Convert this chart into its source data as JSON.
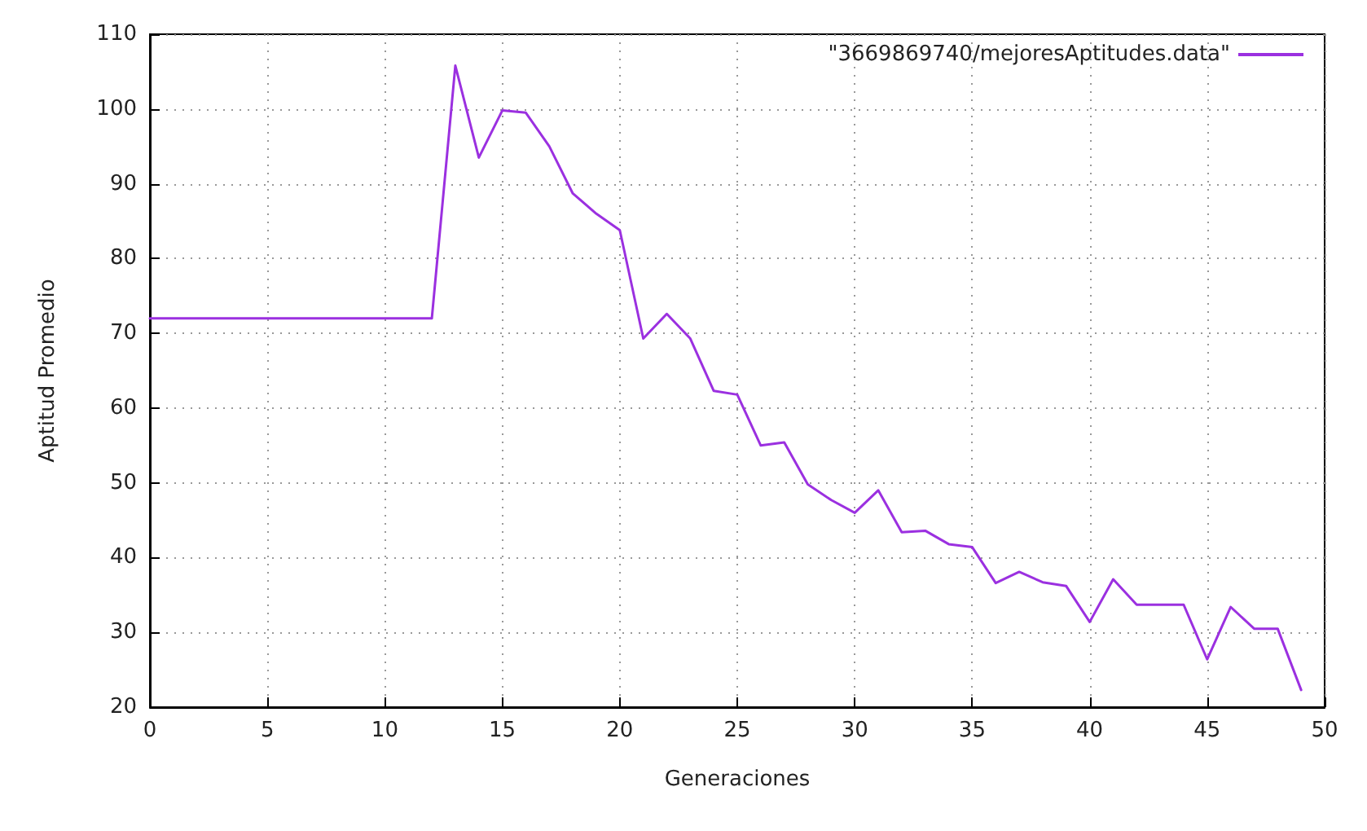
{
  "chart_data": {
    "type": "line",
    "xlabel": "Generaciones",
    "ylabel": "Aptitud Promedio",
    "x": [
      0,
      1,
      2,
      3,
      4,
      5,
      6,
      7,
      8,
      9,
      10,
      11,
      12,
      13,
      14,
      15,
      16,
      17,
      18,
      19,
      20,
      21,
      22,
      23,
      24,
      25,
      26,
      27,
      28,
      29,
      30,
      31,
      32,
      33,
      34,
      35,
      36,
      37,
      38,
      39,
      40,
      41,
      42,
      43,
      44,
      45,
      46,
      47,
      48,
      49
    ],
    "series": [
      {
        "name": "\"3669869740/mejoresAptitudes.data\"",
        "color": "#9b30e0",
        "values": [
          72,
          72,
          72,
          72,
          72,
          72,
          72,
          72,
          72,
          72,
          72,
          72,
          72,
          105.8,
          93.5,
          99.8,
          99.5,
          95,
          88.7,
          86,
          83.8,
          69.3,
          72.6,
          69.3,
          62.3,
          61.8,
          55,
          55.4,
          49.8,
          47.7,
          46,
          49,
          43.4,
          43.6,
          41.8,
          41.4,
          36.6,
          38.1,
          36.7,
          36.2,
          31.4,
          37.1,
          33.7,
          33.7,
          33.7,
          26.4,
          33.4,
          30.5,
          30.5,
          22.3
        ]
      }
    ],
    "xlim": [
      0,
      50
    ],
    "xticks": [
      0,
      5,
      10,
      15,
      20,
      25,
      30,
      35,
      40,
      45,
      50
    ],
    "ylim": [
      20,
      110
    ],
    "yticks": [
      20,
      30,
      40,
      50,
      60,
      70,
      80,
      90,
      100,
      110
    ],
    "grid": true,
    "legend": "top right",
    "marker": "none",
    "line_style": "solid"
  }
}
